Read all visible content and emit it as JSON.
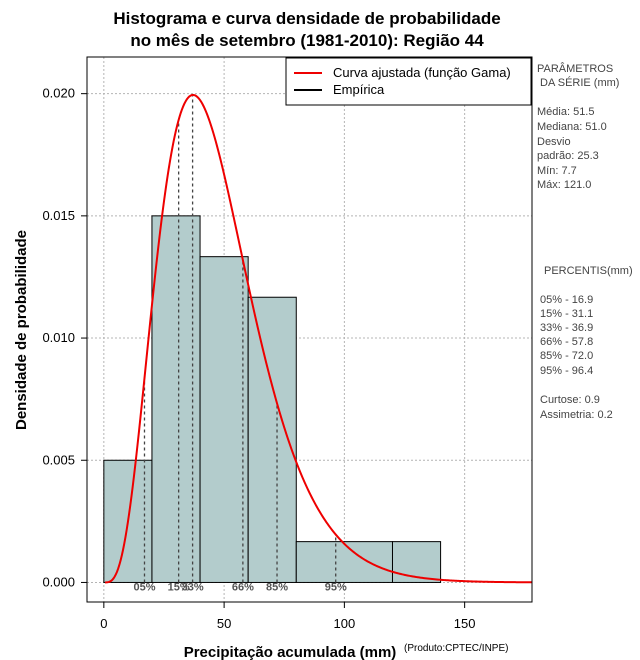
{
  "chart_data": {
    "type": "histogram",
    "title_line1": "Histograma e curva densidade de probabilidade",
    "title_line2": "no mês de setembro (1981-2010): Região 44",
    "xlabel": "Precipitação acumulada (mm)",
    "ylabel": "Densidade de probabilidade",
    "credit": "(Produto:CPTEC/INPE)",
    "xlim": [
      -7,
      178
    ],
    "ylim": [
      -0.0008,
      0.0215
    ],
    "x_ticks": [
      0,
      50,
      100,
      150
    ],
    "x_tick_labels": [
      "0",
      "50",
      "100",
      "150"
    ],
    "y_ticks": [
      0.0,
      0.005,
      0.01,
      0.015,
      0.02
    ],
    "y_tick_labels": [
      "0.000",
      "0.005",
      "0.010",
      "0.015",
      "0.020"
    ],
    "bins": [
      {
        "start": 0,
        "end": 20,
        "density": 0.005
      },
      {
        "start": 20,
        "end": 40,
        "density": 0.015
      },
      {
        "start": 40,
        "end": 60,
        "density": 0.01333
      },
      {
        "start": 60,
        "end": 80,
        "density": 0.01167
      },
      {
        "start": 80,
        "end": 120,
        "density": 0.00167
      },
      {
        "start": 120,
        "end": 140,
        "density": 0.00167
      }
    ],
    "gamma_fit": {
      "shape": 4.6,
      "scale": 10.3
    },
    "percentiles": [
      {
        "label": "05%",
        "value": 16.9
      },
      {
        "label": "15%",
        "value": 31.1
      },
      {
        "label": "33%",
        "value": 36.9
      },
      {
        "label": "66%",
        "value": 57.8
      },
      {
        "label": "85%",
        "value": 72.0
      },
      {
        "label": "95%",
        "value": 96.4
      }
    ],
    "legend": [
      {
        "label": "Curva ajustada (função Gama)",
        "color": "#ee0000"
      },
      {
        "label": "Empírica",
        "color": "#000000"
      }
    ],
    "colors": {
      "bar_fill": "#b3cccc",
      "curve": "#ee0000",
      "grid": "#b4b4b4",
      "percentile_line": "#444444"
    }
  },
  "side_panel": {
    "params_title_1": "PARÂMETROS",
    "params_title_2": "DA SÉRIE (mm)",
    "media": "Média:  51.5",
    "mediana": "Mediana:  51.0",
    "desvio_1": "Desvio",
    "desvio_2": "padrão:  25.3",
    "min": "Mín:  7.7",
    "max": "Máx:  121.0",
    "percentis_title": "PERCENTIS(mm)",
    "p05": "05% -   16.9",
    "p15": "15% -   31.1",
    "p33": "33% -   36.9",
    "p66": "66% -   57.8",
    "p85": "85% -   72.0",
    "p95": "95% -   96.4",
    "curtose": "Curtose:  0.9",
    "assimetria": "Assimetria:  0.2"
  }
}
